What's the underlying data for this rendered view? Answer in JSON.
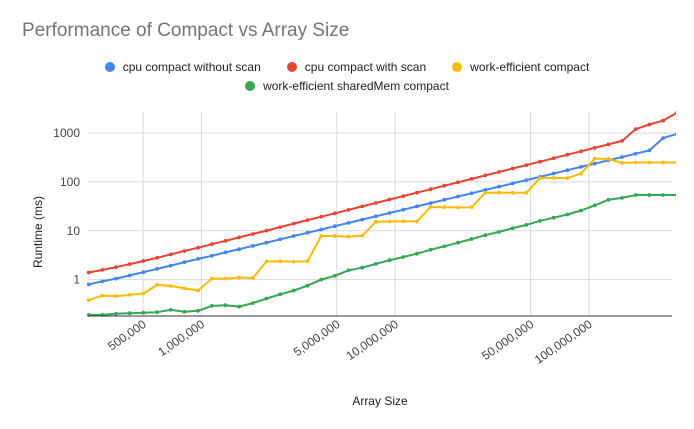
{
  "chart_data": {
    "type": "line",
    "title": "Performance of Compact vs Array Size",
    "xlabel": "Array Size",
    "ylabel": "Runtime (ms)",
    "x_scale": "log",
    "y_scale": "log",
    "xlim": [
      260000,
      268435456
    ],
    "ylim": [
      0.18,
      2700
    ],
    "grid": "horizontal",
    "legend_position": "top",
    "x_tick_labels": [
      "500,000",
      "1,000,000",
      "5,000,000",
      "10,000,000",
      "50,000,000",
      "100,000,000"
    ],
    "x_ticks": [
      500000,
      1000000,
      5000000,
      10000000,
      50000000,
      100000000
    ],
    "y_tick_labels": [
      "1",
      "10",
      "100",
      "1000"
    ],
    "y_ticks": [
      1,
      10,
      100,
      1000
    ],
    "x": [
      262144,
      308405,
      362828,
      426854,
      502181,
      590801,
      695060,
      817716,
      962020,
      1131787,
      1331514,
      1566482,
      1842910,
      2168126,
      2550733,
      3000862,
      3530423,
      4153431,
      4886390,
      5748696,
      6763167,
      7956667,
      9360788,
      11012696,
      12956020,
      15242391,
      17932145,
      21096485,
      24819271,
      29199075,
      34351874,
      40413889,
      47545653,
      55935888,
      65807001,
      77419889,
      91082072,
      107155220,
      126064767,
      148311232,
      174483451,
      205274320,
      241498684,
      284115800
    ],
    "series": [
      {
        "name": "cpu compact without scan",
        "color": "#4285f4",
        "values": [
          0.8,
          0.92,
          1.05,
          1.22,
          1.42,
          1.66,
          1.94,
          2.27,
          2.65,
          3.08,
          3.6,
          4.2,
          4.9,
          5.7,
          6.7,
          7.8,
          9.1,
          10.6,
          12.4,
          14.5,
          16.9,
          19.8,
          23.1,
          27.0,
          31.5,
          36.8,
          43.0,
          50.2,
          58.6,
          68.5,
          80.0,
          93.4,
          109,
          127,
          149,
          174,
          203,
          237,
          277,
          323,
          378,
          441,
          790,
          960
        ]
      },
      {
        "name": "cpu compact with scan",
        "color": "#ea4335",
        "values": [
          1.4,
          1.58,
          1.8,
          2.08,
          2.4,
          2.8,
          3.28,
          3.85,
          4.5,
          5.3,
          6.2,
          7.3,
          8.6,
          10.1,
          11.9,
          14.0,
          16.5,
          19.4,
          22.8,
          26.8,
          31.5,
          37.1,
          43.6,
          51.3,
          60.3,
          71.0,
          83.5,
          98.2,
          115.5,
          136,
          160,
          188,
          221,
          260,
          306,
          360,
          423,
          498,
          586,
          690,
          1200,
          1500,
          1800,
          2600
        ]
      },
      {
        "name": "work-efficient compact",
        "color": "#fbbc04",
        "values": [
          0.38,
          0.47,
          0.46,
          0.49,
          0.52,
          0.78,
          0.74,
          0.66,
          0.6,
          1.05,
          1.05,
          1.1,
          1.08,
          2.35,
          2.38,
          2.34,
          2.37,
          7.8,
          7.8,
          7.6,
          7.9,
          15.3,
          15.5,
          15.7,
          15.6,
          30.6,
          30.2,
          30.0,
          30.4,
          60,
          60.5,
          60,
          60,
          120,
          121,
          120,
          148,
          300,
          295,
          245,
          250,
          250,
          250,
          250
        ]
      },
      {
        "name": "work-efficient sharedMem compact",
        "color": "#34a853",
        "values": [
          0.19,
          0.19,
          0.2,
          0.205,
          0.21,
          0.215,
          0.24,
          0.22,
          0.23,
          0.29,
          0.3,
          0.28,
          0.33,
          0.41,
          0.5,
          0.6,
          0.75,
          1.0,
          1.2,
          1.55,
          1.75,
          2.1,
          2.5,
          2.9,
          3.4,
          4.1,
          4.8,
          5.7,
          6.8,
          8.1,
          9.5,
          11.3,
          13.2,
          16.0,
          18.5,
          21.5,
          26.0,
          33.0,
          43.0,
          47.0,
          54.0,
          54.0,
          54.0,
          54.0
        ]
      }
    ]
  }
}
